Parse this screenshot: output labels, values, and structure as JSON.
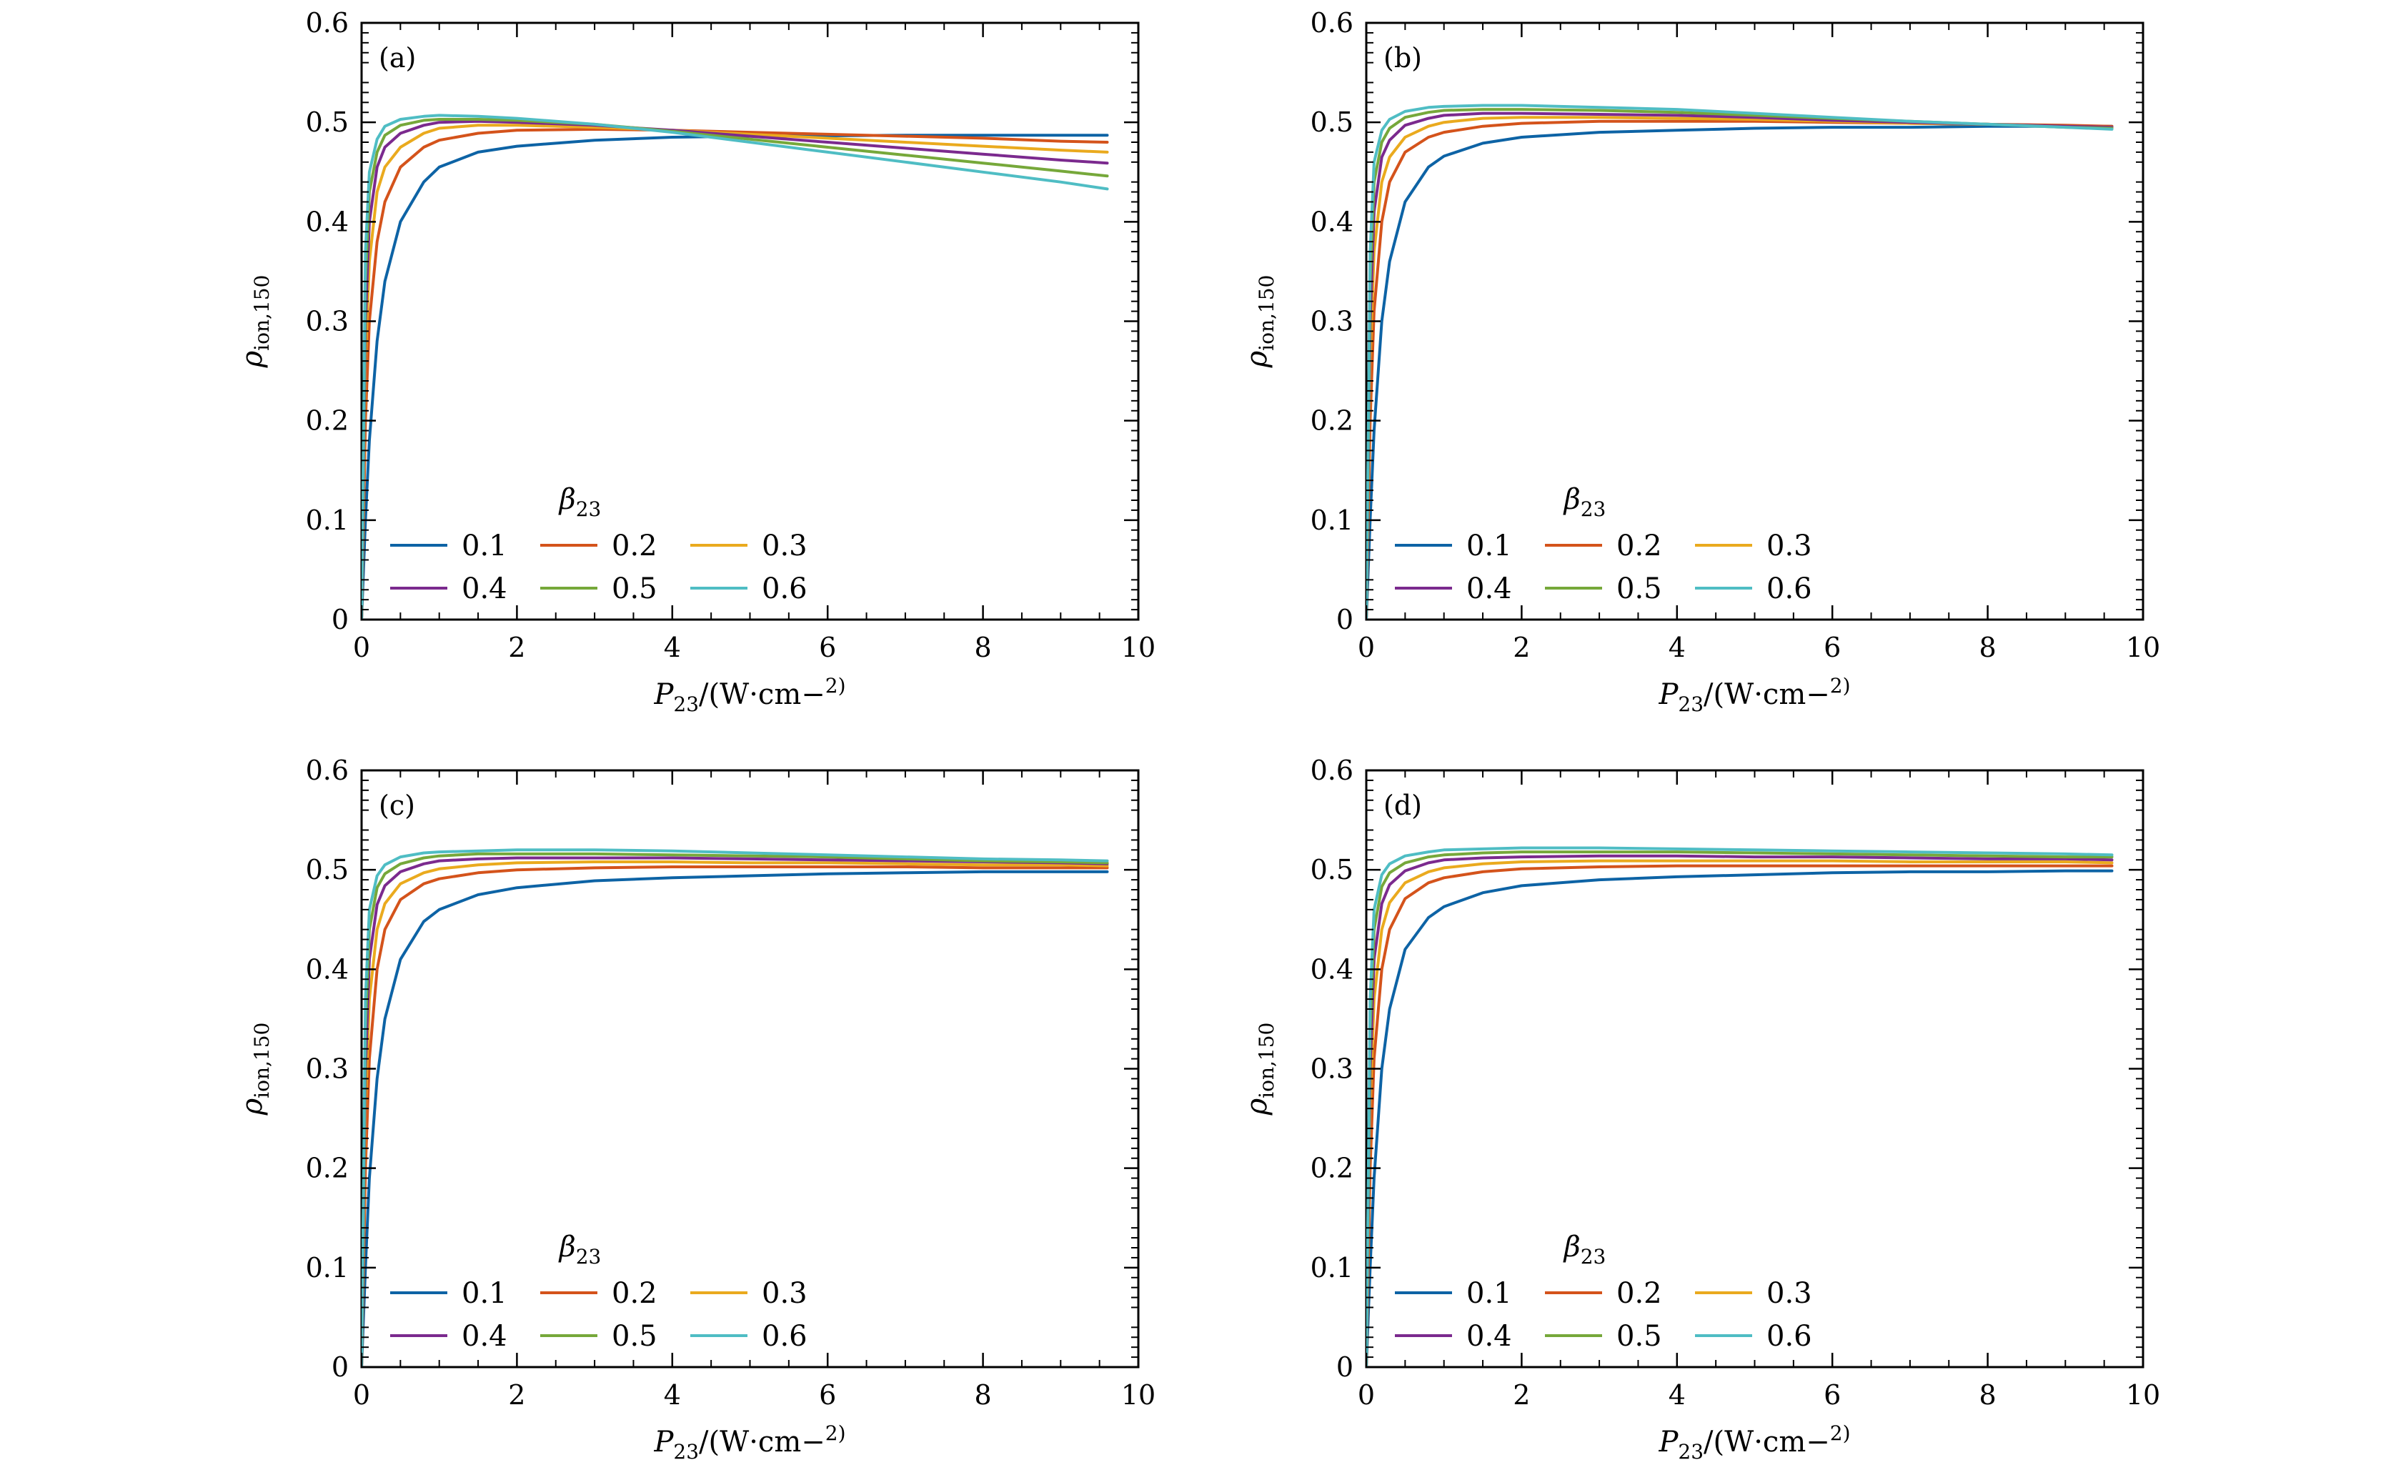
{
  "colors": {
    "axis": "#000000",
    "series": [
      "#0d63a5",
      "#d4531b",
      "#eaaa1e",
      "#7b2a8e",
      "#76a83a",
      "#4fbdc4"
    ]
  },
  "chart_data": [
    {
      "type": "line",
      "panel_label": "(a)",
      "xlabel": "P23/(W·cm−2)",
      "ylabel": "ρion,150",
      "xlim": [
        0,
        10
      ],
      "ylim": [
        0,
        0.6
      ],
      "xticks": [
        "0",
        "2",
        "4",
        "6",
        "8",
        "10"
      ],
      "yticks": [
        "0",
        "0.1",
        "0.2",
        "0.3",
        "0.4",
        "0.5",
        "0.6"
      ],
      "grid": false,
      "legend_title": "β23",
      "legend_position": "bottom-left",
      "series": [
        {
          "name": "0.1",
          "x": [
            0,
            0.05,
            0.1,
            0.2,
            0.3,
            0.5,
            0.8,
            1,
            1.5,
            2,
            3,
            4,
            5,
            6,
            7,
            8,
            9,
            9.6
          ],
          "y": [
            0,
            0.1,
            0.18,
            0.28,
            0.34,
            0.4,
            0.44,
            0.455,
            0.47,
            0.476,
            0.482,
            0.485,
            0.486,
            0.4865,
            0.487,
            0.487,
            0.487,
            0.487
          ]
        },
        {
          "name": "0.2",
          "x": [
            0,
            0.05,
            0.1,
            0.2,
            0.3,
            0.5,
            0.8,
            1,
            1.5,
            2,
            3,
            4,
            5,
            6,
            7,
            8,
            9,
            9.6
          ],
          "y": [
            0,
            0.2,
            0.3,
            0.38,
            0.42,
            0.455,
            0.475,
            0.482,
            0.489,
            0.492,
            0.493,
            0.492,
            0.49,
            0.488,
            0.486,
            0.484,
            0.481,
            0.48
          ]
        },
        {
          "name": "0.3",
          "x": [
            0,
            0.05,
            0.1,
            0.2,
            0.3,
            0.5,
            0.8,
            1,
            1.5,
            2,
            3,
            4,
            5,
            6,
            7,
            8,
            9,
            9.6
          ],
          "y": [
            0,
            0.26,
            0.36,
            0.43,
            0.455,
            0.475,
            0.489,
            0.494,
            0.497,
            0.497,
            0.495,
            0.492,
            0.488,
            0.484,
            0.48,
            0.476,
            0.472,
            0.47
          ]
        },
        {
          "name": "0.4",
          "x": [
            0,
            0.05,
            0.1,
            0.2,
            0.3,
            0.5,
            0.8,
            1,
            1.5,
            2,
            3,
            4,
            5,
            6,
            7,
            8,
            9,
            9.6
          ],
          "y": [
            0,
            0.3,
            0.4,
            0.455,
            0.475,
            0.489,
            0.497,
            0.5,
            0.501,
            0.5,
            0.497,
            0.492,
            0.486,
            0.48,
            0.474,
            0.468,
            0.462,
            0.459
          ]
        },
        {
          "name": "0.5",
          "x": [
            0,
            0.05,
            0.1,
            0.2,
            0.3,
            0.5,
            0.8,
            1,
            1.5,
            2,
            3,
            4,
            5,
            6,
            7,
            8,
            9,
            9.6
          ],
          "y": [
            0,
            0.34,
            0.43,
            0.47,
            0.487,
            0.497,
            0.502,
            0.503,
            0.503,
            0.502,
            0.498,
            0.491,
            0.483,
            0.475,
            0.467,
            0.459,
            0.451,
            0.446
          ]
        },
        {
          "name": "0.6",
          "x": [
            0,
            0.05,
            0.1,
            0.2,
            0.3,
            0.5,
            0.8,
            1,
            1.5,
            2,
            3,
            4,
            5,
            6,
            7,
            8,
            9,
            9.6
          ],
          "y": [
            0,
            0.37,
            0.45,
            0.483,
            0.496,
            0.503,
            0.506,
            0.507,
            0.506,
            0.504,
            0.498,
            0.49,
            0.48,
            0.47,
            0.46,
            0.45,
            0.44,
            0.433
          ]
        }
      ]
    },
    {
      "type": "line",
      "panel_label": "(b)",
      "xlabel": "P23/(W·cm−2)",
      "ylabel": "ρion,150",
      "xlim": [
        0,
        10
      ],
      "ylim": [
        0,
        0.6
      ],
      "xticks": [
        "0",
        "2",
        "4",
        "6",
        "8",
        "10"
      ],
      "yticks": [
        "0",
        "0.1",
        "0.2",
        "0.3",
        "0.4",
        "0.5",
        "0.6"
      ],
      "grid": false,
      "legend_title": "β23",
      "legend_position": "bottom-left",
      "series": [
        {
          "name": "0.1",
          "x": [
            0,
            0.05,
            0.1,
            0.2,
            0.3,
            0.5,
            0.8,
            1,
            1.5,
            2,
            3,
            4,
            5,
            6,
            7,
            8,
            9,
            9.6
          ],
          "y": [
            0,
            0.1,
            0.19,
            0.3,
            0.36,
            0.42,
            0.455,
            0.466,
            0.479,
            0.485,
            0.49,
            0.492,
            0.494,
            0.495,
            0.495,
            0.496,
            0.496,
            0.496
          ]
        },
        {
          "name": "0.2",
          "x": [
            0,
            0.05,
            0.1,
            0.2,
            0.3,
            0.5,
            0.8,
            1,
            1.5,
            2,
            3,
            4,
            5,
            6,
            7,
            8,
            9,
            9.6
          ],
          "y": [
            0,
            0.2,
            0.31,
            0.4,
            0.44,
            0.47,
            0.485,
            0.49,
            0.496,
            0.499,
            0.501,
            0.501,
            0.501,
            0.5,
            0.499,
            0.498,
            0.497,
            0.496
          ]
        },
        {
          "name": "0.3",
          "x": [
            0,
            0.05,
            0.1,
            0.2,
            0.3,
            0.5,
            0.8,
            1,
            1.5,
            2,
            3,
            4,
            5,
            6,
            7,
            8,
            9,
            9.6
          ],
          "y": [
            0,
            0.26,
            0.37,
            0.44,
            0.465,
            0.485,
            0.496,
            0.5,
            0.504,
            0.505,
            0.505,
            0.504,
            0.503,
            0.501,
            0.499,
            0.498,
            0.496,
            0.495
          ]
        },
        {
          "name": "0.4",
          "x": [
            0,
            0.05,
            0.1,
            0.2,
            0.3,
            0.5,
            0.8,
            1,
            1.5,
            2,
            3,
            4,
            5,
            6,
            7,
            8,
            9,
            9.6
          ],
          "y": [
            0,
            0.3,
            0.41,
            0.465,
            0.482,
            0.497,
            0.504,
            0.507,
            0.509,
            0.509,
            0.508,
            0.507,
            0.505,
            0.502,
            0.5,
            0.498,
            0.496,
            0.495
          ]
        },
        {
          "name": "0.5",
          "x": [
            0,
            0.05,
            0.1,
            0.2,
            0.3,
            0.5,
            0.8,
            1,
            1.5,
            2,
            3,
            4,
            5,
            6,
            7,
            8,
            9,
            9.6
          ],
          "y": [
            0,
            0.34,
            0.44,
            0.48,
            0.494,
            0.505,
            0.51,
            0.512,
            0.513,
            0.513,
            0.512,
            0.51,
            0.507,
            0.504,
            0.501,
            0.498,
            0.495,
            0.494
          ]
        },
        {
          "name": "0.6",
          "x": [
            0,
            0.05,
            0.1,
            0.2,
            0.3,
            0.5,
            0.8,
            1,
            1.5,
            2,
            3,
            4,
            5,
            6,
            7,
            8,
            9,
            9.6
          ],
          "y": [
            0,
            0.37,
            0.46,
            0.492,
            0.503,
            0.511,
            0.515,
            0.516,
            0.517,
            0.517,
            0.515,
            0.513,
            0.509,
            0.505,
            0.501,
            0.498,
            0.495,
            0.493
          ]
        }
      ]
    },
    {
      "type": "line",
      "panel_label": "(c)",
      "xlabel": "P23/(W·cm−2)",
      "ylabel": "ρion,150",
      "xlim": [
        0,
        10
      ],
      "ylim": [
        0,
        0.6
      ],
      "xticks": [
        "0",
        "2",
        "4",
        "6",
        "8",
        "10"
      ],
      "yticks": [
        "0",
        "0.1",
        "0.2",
        "0.3",
        "0.4",
        "0.5",
        "0.6"
      ],
      "grid": false,
      "legend_title": "β23",
      "legend_position": "bottom-left",
      "series": [
        {
          "name": "0.1",
          "x": [
            0,
            0.05,
            0.1,
            0.2,
            0.3,
            0.5,
            0.8,
            1,
            1.5,
            2,
            3,
            4,
            5,
            6,
            7,
            8,
            9,
            9.6
          ],
          "y": [
            0,
            0.1,
            0.19,
            0.29,
            0.35,
            0.41,
            0.448,
            0.46,
            0.475,
            0.482,
            0.489,
            0.492,
            0.494,
            0.496,
            0.497,
            0.498,
            0.498,
            0.498
          ]
        },
        {
          "name": "0.2",
          "x": [
            0,
            0.05,
            0.1,
            0.2,
            0.3,
            0.5,
            0.8,
            1,
            1.5,
            2,
            3,
            4,
            5,
            6,
            7,
            8,
            9,
            9.6
          ],
          "y": [
            0,
            0.2,
            0.31,
            0.4,
            0.44,
            0.47,
            0.486,
            0.491,
            0.497,
            0.5,
            0.502,
            0.503,
            0.503,
            0.503,
            0.503,
            0.502,
            0.502,
            0.502
          ]
        },
        {
          "name": "0.3",
          "x": [
            0,
            0.05,
            0.1,
            0.2,
            0.3,
            0.5,
            0.8,
            1,
            1.5,
            2,
            3,
            4,
            5,
            6,
            7,
            8,
            9,
            9.6
          ],
          "y": [
            0,
            0.26,
            0.37,
            0.44,
            0.466,
            0.486,
            0.497,
            0.501,
            0.505,
            0.507,
            0.508,
            0.508,
            0.507,
            0.507,
            0.506,
            0.505,
            0.505,
            0.504
          ]
        },
        {
          "name": "0.4",
          "x": [
            0,
            0.05,
            0.1,
            0.2,
            0.3,
            0.5,
            0.8,
            1,
            1.5,
            2,
            3,
            4,
            5,
            6,
            7,
            8,
            9,
            9.6
          ],
          "y": [
            0,
            0.3,
            0.41,
            0.465,
            0.484,
            0.498,
            0.506,
            0.509,
            0.511,
            0.512,
            0.512,
            0.512,
            0.511,
            0.51,
            0.509,
            0.508,
            0.507,
            0.506
          ]
        },
        {
          "name": "0.5",
          "x": [
            0,
            0.05,
            0.1,
            0.2,
            0.3,
            0.5,
            0.8,
            1,
            1.5,
            2,
            3,
            4,
            5,
            6,
            7,
            8,
            9,
            9.6
          ],
          "y": [
            0,
            0.34,
            0.44,
            0.482,
            0.496,
            0.506,
            0.512,
            0.514,
            0.516,
            0.516,
            0.516,
            0.515,
            0.514,
            0.513,
            0.511,
            0.509,
            0.508,
            0.507
          ]
        },
        {
          "name": "0.6",
          "x": [
            0,
            0.05,
            0.1,
            0.2,
            0.3,
            0.5,
            0.8,
            1,
            1.5,
            2,
            3,
            4,
            5,
            6,
            7,
            8,
            9,
            9.6
          ],
          "y": [
            0,
            0.37,
            0.46,
            0.494,
            0.505,
            0.513,
            0.517,
            0.518,
            0.519,
            0.52,
            0.52,
            0.519,
            0.517,
            0.515,
            0.513,
            0.511,
            0.51,
            0.509
          ]
        }
      ]
    },
    {
      "type": "line",
      "panel_label": "(d)",
      "xlabel": "P23/(W·cm−2)",
      "ylabel": "ρion,150",
      "xlim": [
        0,
        10
      ],
      "ylim": [
        0,
        0.6
      ],
      "xticks": [
        "0",
        "2",
        "4",
        "6",
        "8",
        "10"
      ],
      "yticks": [
        "0",
        "0.1",
        "0.2",
        "0.3",
        "0.4",
        "0.5",
        "0.6"
      ],
      "grid": false,
      "legend_title": "β23",
      "legend_position": "bottom-left",
      "series": [
        {
          "name": "0.1",
          "x": [
            0,
            0.05,
            0.1,
            0.2,
            0.3,
            0.5,
            0.8,
            1,
            1.5,
            2,
            3,
            4,
            5,
            6,
            7,
            8,
            9,
            9.6
          ],
          "y": [
            0,
            0.1,
            0.19,
            0.3,
            0.36,
            0.42,
            0.452,
            0.463,
            0.477,
            0.484,
            0.49,
            0.493,
            0.495,
            0.497,
            0.498,
            0.498,
            0.499,
            0.499
          ]
        },
        {
          "name": "0.2",
          "x": [
            0,
            0.05,
            0.1,
            0.2,
            0.3,
            0.5,
            0.8,
            1,
            1.5,
            2,
            3,
            4,
            5,
            6,
            7,
            8,
            9,
            9.6
          ],
          "y": [
            0,
            0.2,
            0.31,
            0.4,
            0.44,
            0.471,
            0.487,
            0.492,
            0.498,
            0.501,
            0.503,
            0.504,
            0.504,
            0.504,
            0.504,
            0.504,
            0.504,
            0.504
          ]
        },
        {
          "name": "0.3",
          "x": [
            0,
            0.05,
            0.1,
            0.2,
            0.3,
            0.5,
            0.8,
            1,
            1.5,
            2,
            3,
            4,
            5,
            6,
            7,
            8,
            9,
            9.6
          ],
          "y": [
            0,
            0.26,
            0.37,
            0.44,
            0.467,
            0.487,
            0.498,
            0.502,
            0.506,
            0.508,
            0.509,
            0.509,
            0.509,
            0.509,
            0.508,
            0.508,
            0.508,
            0.507
          ]
        },
        {
          "name": "0.4",
          "x": [
            0,
            0.05,
            0.1,
            0.2,
            0.3,
            0.5,
            0.8,
            1,
            1.5,
            2,
            3,
            4,
            5,
            6,
            7,
            8,
            9,
            9.6
          ],
          "y": [
            0,
            0.3,
            0.41,
            0.466,
            0.485,
            0.499,
            0.507,
            0.51,
            0.512,
            0.513,
            0.514,
            0.514,
            0.513,
            0.513,
            0.512,
            0.511,
            0.511,
            0.51
          ]
        },
        {
          "name": "0.5",
          "x": [
            0,
            0.05,
            0.1,
            0.2,
            0.3,
            0.5,
            0.8,
            1,
            1.5,
            2,
            3,
            4,
            5,
            6,
            7,
            8,
            9,
            9.6
          ],
          "y": [
            0,
            0.34,
            0.44,
            0.483,
            0.497,
            0.507,
            0.513,
            0.515,
            0.517,
            0.518,
            0.518,
            0.518,
            0.517,
            0.516,
            0.515,
            0.514,
            0.513,
            0.513
          ]
        },
        {
          "name": "0.6",
          "x": [
            0,
            0.05,
            0.1,
            0.2,
            0.3,
            0.5,
            0.8,
            1,
            1.5,
            2,
            3,
            4,
            5,
            6,
            7,
            8,
            9,
            9.6
          ],
          "y": [
            0,
            0.37,
            0.46,
            0.495,
            0.506,
            0.514,
            0.518,
            0.52,
            0.521,
            0.522,
            0.522,
            0.521,
            0.52,
            0.519,
            0.518,
            0.517,
            0.516,
            0.515
          ]
        }
      ]
    }
  ]
}
